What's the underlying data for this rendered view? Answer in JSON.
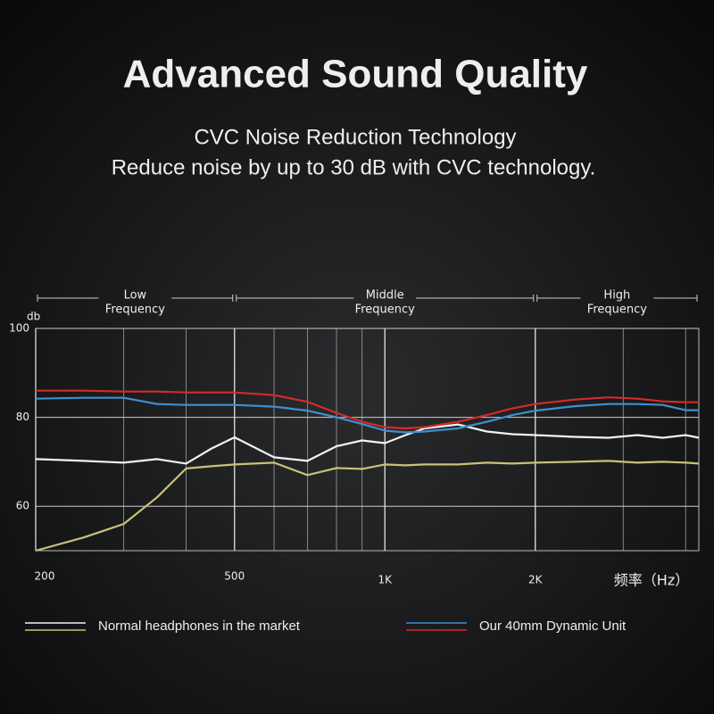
{
  "chart_data": {
    "type": "line",
    "title": "Advanced Sound Quality",
    "subtitle": [
      "CVC Noise Reduction Technology",
      "Reduce noise by up to 30 dB with CVC technology."
    ],
    "y_label": "db",
    "x_label": "频率（Hz）",
    "log_x": true,
    "grid": true,
    "minor_grid": true,
    "xlim": [
      200,
      4250
    ],
    "ylim": [
      50,
      100
    ],
    "xticks": [
      200,
      500,
      {
        "value": 1000,
        "label": "1K"
      },
      {
        "value": 2000,
        "label": "2K"
      }
    ],
    "yticks": [
      60,
      80,
      100
    ],
    "bands": [
      {
        "label": [
          "Low",
          "Frequency"
        ],
        "range": [
          200,
          500
        ]
      },
      {
        "label": [
          "Middle",
          "Frequency"
        ],
        "range": [
          500,
          2000
        ]
      },
      {
        "label": [
          "High",
          "Frequency"
        ],
        "range": [
          2000,
          4250
        ]
      }
    ],
    "x": [
      200,
      250,
      300,
      350,
      400,
      450,
      500,
      600,
      700,
      800,
      900,
      1000,
      1100,
      1200,
      1400,
      1600,
      1800,
      2000,
      2400,
      2800,
      3200,
      3600,
      4000,
      4250
    ],
    "series": [
      {
        "color": "#f2f2f2",
        "values": [
          70.6,
          70.2,
          69.8,
          70.6,
          69.6,
          73,
          75.5,
          71,
          70.2,
          73.5,
          74.8,
          74.2,
          76,
          77.5,
          78.4,
          76.8,
          76.2,
          76,
          75.6,
          75.4,
          76,
          75.4,
          76,
          75.4
        ]
      },
      {
        "color": "#c8c27a",
        "values": [
          50,
          53,
          56,
          62,
          68.5,
          69,
          69.4,
          69.8,
          67,
          68.6,
          68.4,
          69.4,
          69.2,
          69.4,
          69.4,
          69.8,
          69.6,
          69.8,
          70,
          70.2,
          69.8,
          70,
          69.8,
          69.6
        ]
      },
      {
        "color": "#3f8fd0",
        "values": [
          84.2,
          84.4,
          84.4,
          83,
          82.8,
          82.8,
          82.8,
          82.4,
          81.5,
          80,
          78.5,
          77,
          76.6,
          76.8,
          77.5,
          79,
          80.5,
          81.5,
          82.5,
          83,
          83,
          82.8,
          81.6,
          81.6
        ]
      },
      {
        "color": "#d42a2a",
        "values": [
          86,
          86,
          85.8,
          85.8,
          85.6,
          85.6,
          85.6,
          85,
          83.5,
          81,
          79,
          77.8,
          77.5,
          77.8,
          79,
          80.5,
          82,
          83,
          84,
          84.5,
          84.2,
          83.6,
          83.4,
          83.4
        ]
      }
    ],
    "legend": [
      {
        "label": "Normal headphones in the market",
        "colors": [
          "#f2f2f2",
          "#c8c27a"
        ]
      },
      {
        "label": "Our 40mm Dynamic Unit",
        "colors": [
          "#3f8fd0",
          "#d42a2a"
        ]
      }
    ]
  }
}
